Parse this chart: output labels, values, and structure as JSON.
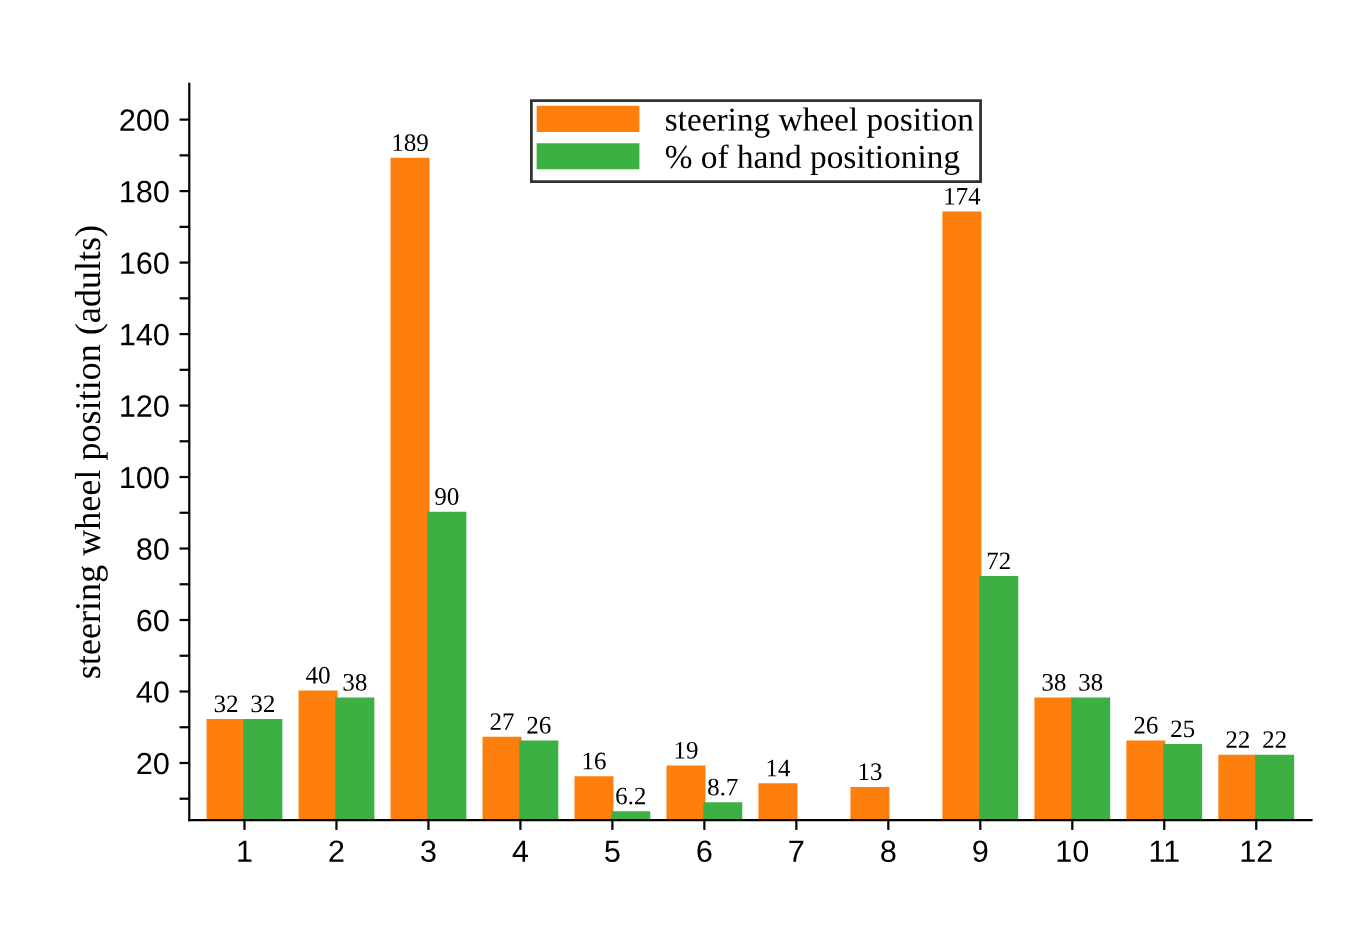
{
  "chart_data": {
    "type": "bar",
    "ylabel": "steering wheel position (adults)",
    "categories": [
      "1",
      "2",
      "3",
      "4",
      "5",
      "6",
      "7",
      "8",
      "9",
      "10",
      "11",
      "12"
    ],
    "series": [
      {
        "name": "steering wheel position",
        "color": "#ff7f0e",
        "values": [
          32,
          40,
          189,
          27,
          16,
          19,
          14,
          13,
          174,
          38,
          26,
          22
        ]
      },
      {
        "name": "% of hand positioning",
        "color": "#3cb043",
        "values": [
          32,
          38,
          90,
          26,
          6.2,
          8.7,
          null,
          null,
          72,
          38,
          25,
          22
        ]
      }
    ],
    "ylim": [
      4,
      210
    ],
    "yticks": [
      {
        "value": 10,
        "label": null
      },
      20,
      {
        "value": 30,
        "label": null
      },
      40,
      {
        "value": 50,
        "label": null
      },
      60,
      {
        "value": 70,
        "label": null
      },
      80,
      {
        "value": 90,
        "label": null
      },
      100,
      {
        "value": 110,
        "label": null
      },
      120,
      {
        "value": 130,
        "label": null
      },
      140,
      {
        "value": 150,
        "label": null
      },
      160,
      {
        "value": 170,
        "label": null
      },
      180,
      {
        "value": 190,
        "label": null
      },
      200
    ],
    "data_labels": true,
    "legend": "top right",
    "grid": false
  }
}
